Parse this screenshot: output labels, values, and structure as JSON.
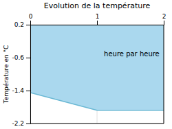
{
  "chart_data": {
    "type": "area",
    "title": "Evolution de la température",
    "y_label": "Température en °C",
    "x": [
      0,
      1,
      2
    ],
    "series": [
      {
        "values": [
          -1.45,
          -1.88,
          -1.88
        ],
        "color": "#6ab8d4"
      }
    ],
    "color": "#aad8ee",
    "fill_to": 0.2,
    "xlim": [
      0,
      2
    ],
    "xticks": [
      0,
      1,
      2
    ],
    "ylim": [
      -2.2,
      0.2
    ],
    "yticks": [
      0.2,
      -0.6,
      -1.4,
      -2.2
    ],
    "grid": true,
    "annotations": [
      {
        "text": "heure par heure",
        "x": 1.52,
        "y": -0.52
      }
    ]
  }
}
